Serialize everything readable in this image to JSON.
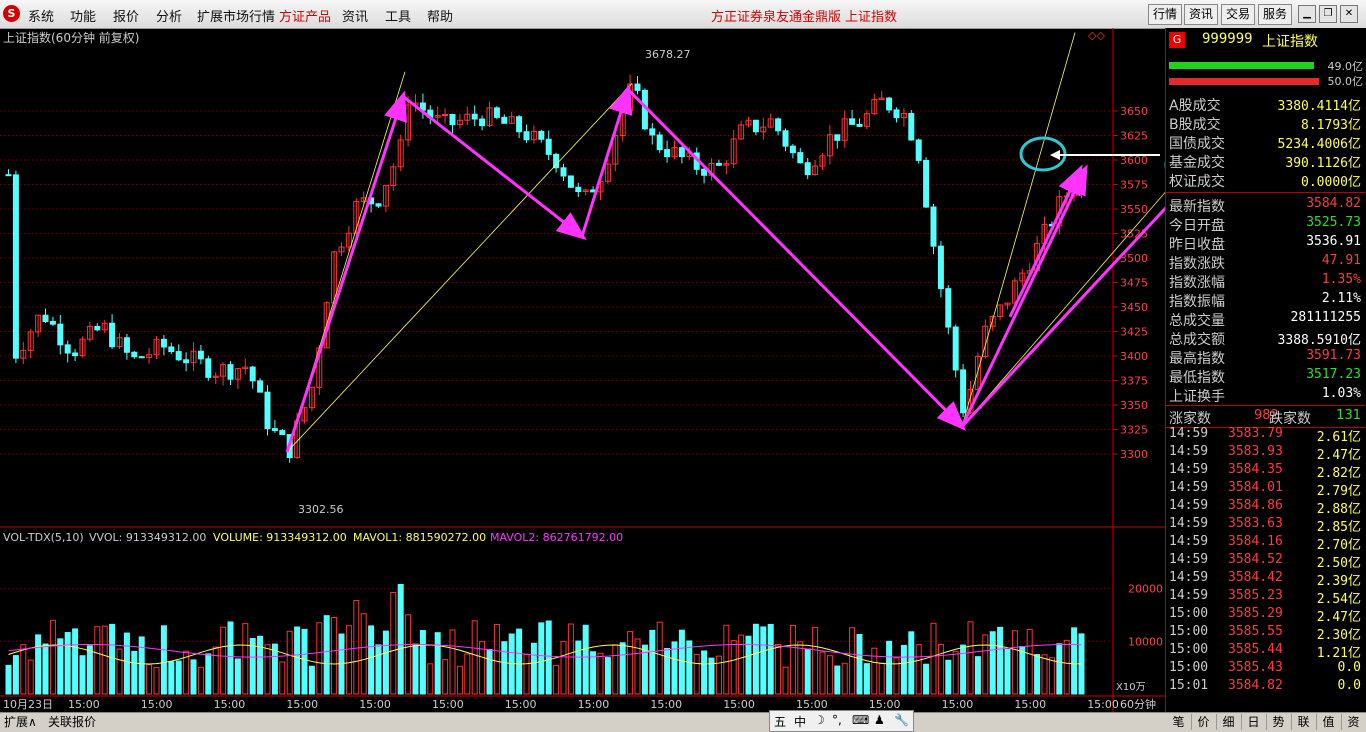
{
  "menubar": {
    "logo": "S",
    "items": [
      "系统",
      "功能",
      "报价",
      "分析",
      "扩展市场行情",
      "方证产品",
      "资讯",
      "工具",
      "帮助"
    ],
    "active_item": "方证产品",
    "center_title": "方正证券泉友通金鼎版",
    "center_subtitle": "上证指数",
    "right_buttons": [
      "行情",
      "资讯",
      "交易",
      "服务"
    ],
    "win_buttons": [
      "minimize-icon",
      "restore-icon",
      "close-icon"
    ]
  },
  "chart": {
    "title": "上证指数(60分钟 前复权)",
    "price_axis": [
      "3650",
      "3625",
      "3600",
      "3575",
      "3550",
      "3525",
      "3500",
      "3475",
      "3450",
      "3425",
      "3400",
      "3375",
      "3350",
      "3325",
      "3300"
    ],
    "high_label": "3678.27",
    "low_label": "3302.56",
    "indicator_header": {
      "name": "VOL-TDX(5,10)",
      "vvol": "VVOL: 913349312.00",
      "volume": "VOLUME: 913349312.00",
      "mavol1": "MAVOL1: 881590272.00",
      "mavol2": "MAVOL2: 862761792.00"
    },
    "vol_axis": [
      "20000",
      "10000"
    ],
    "vol_unit": "X10万",
    "date_label": "10月23日",
    "time_labels": [
      "15:00",
      "15:00",
      "15:00",
      "15:00",
      "15:00",
      "15:00",
      "15:00",
      "15:00",
      "15:00",
      "15:00",
      "15:00",
      "15:00",
      "15:00",
      "15:00",
      "15:00"
    ],
    "period": "60分钟",
    "colors": {
      "up": "#ff3232",
      "down": "#54ffff",
      "magenta": "#ff33ff",
      "yellow": "#ffff54",
      "cyan_circle": "#2ec8d0"
    }
  },
  "side": {
    "code": "999999",
    "name": "上证指数",
    "badge": "G",
    "bar_top_value": "49.0亿",
    "bar_bottom_value": "50.0亿",
    "volumes": [
      {
        "label": "A股成交",
        "value": "3380.4114亿"
      },
      {
        "label": "B股成交",
        "value": "8.1793亿"
      },
      {
        "label": "国债成交",
        "value": "5234.4006亿"
      },
      {
        "label": "基金成交",
        "value": "390.1126亿"
      },
      {
        "label": "权证成交",
        "value": "0.0000亿"
      }
    ],
    "stats": [
      {
        "label": "最新指数",
        "value": "3584.82",
        "color": "red"
      },
      {
        "label": "今日开盘",
        "value": "3525.73",
        "color": "grn"
      },
      {
        "label": "昨日收盘",
        "value": "3536.91",
        "color": "white"
      },
      {
        "label": "指数涨跌",
        "value": "47.91",
        "color": "red"
      },
      {
        "label": "指数涨幅",
        "value": "1.35%",
        "color": "red"
      },
      {
        "label": "指数振幅",
        "value": "2.11%",
        "color": "white"
      },
      {
        "label": "总成交量",
        "value": "281111255",
        "color": "white"
      },
      {
        "label": "总成交额",
        "value": "3388.5910亿",
        "color": "white"
      },
      {
        "label": "最高指数",
        "value": "3591.73",
        "color": "red"
      },
      {
        "label": "最低指数",
        "value": "3517.23",
        "color": "grn"
      },
      {
        "label": "上证换手",
        "value": "1.03%",
        "color": "white"
      }
    ],
    "up_label": "涨家数",
    "up_count": "982",
    "down_label": "跌家数",
    "down_count": "131",
    "ticks": [
      {
        "time": "14:59",
        "price": "3583.79",
        "amount": "2.61亿"
      },
      {
        "time": "14:59",
        "price": "3583.93",
        "amount": "2.47亿"
      },
      {
        "time": "14:59",
        "price": "3584.35",
        "amount": "2.82亿"
      },
      {
        "time": "14:59",
        "price": "3584.01",
        "amount": "2.79亿"
      },
      {
        "time": "14:59",
        "price": "3584.86",
        "amount": "2.88亿"
      },
      {
        "time": "14:59",
        "price": "3583.63",
        "amount": "2.85亿"
      },
      {
        "time": "14:59",
        "price": "3584.16",
        "amount": "2.70亿"
      },
      {
        "time": "14:59",
        "price": "3584.52",
        "amount": "2.50亿"
      },
      {
        "time": "14:59",
        "price": "3584.42",
        "amount": "2.39亿"
      },
      {
        "time": "14:59",
        "price": "3585.23",
        "amount": "2.54亿"
      },
      {
        "time": "15:00",
        "price": "3585.29",
        "amount": "2.47亿"
      },
      {
        "time": "15:00",
        "price": "3585.55",
        "amount": "2.30亿"
      },
      {
        "time": "15:00",
        "price": "3585.44",
        "amount": "1.21亿"
      },
      {
        "time": "15:00",
        "price": "3585.43",
        "amount": "0.0"
      },
      {
        "time": "15:01",
        "price": "3584.82",
        "amount": "0.0"
      }
    ],
    "tabs": [
      "笔",
      "价",
      "细",
      "日",
      "势",
      "联",
      "值",
      "资"
    ]
  },
  "bottombar": {
    "tabs": [
      "扩展∧",
      "关联报价"
    ],
    "toolbox": [
      "五",
      "中",
      "☽",
      "°,",
      "⌨",
      "♟",
      "🔧"
    ]
  }
}
